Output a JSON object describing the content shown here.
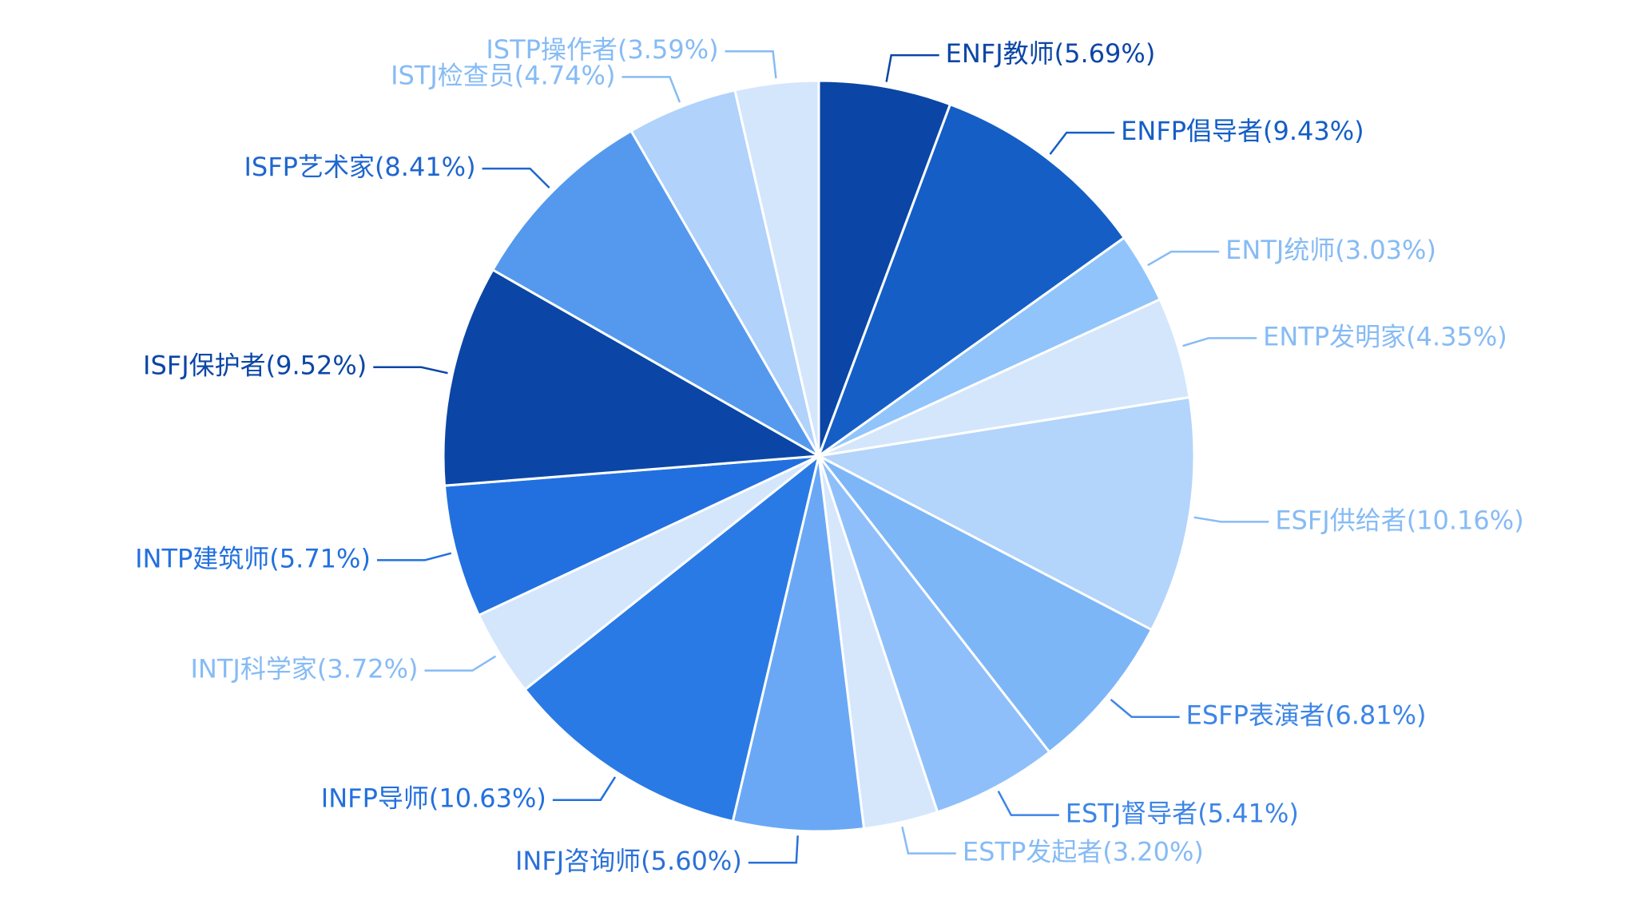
{
  "chart_data": {
    "type": "pie",
    "values": [
      5.69,
      9.43,
      3.03,
      4.35,
      10.16,
      6.81,
      5.41,
      3.2,
      5.6,
      10.63,
      3.72,
      5.71,
      9.52,
      8.41,
      4.74,
      3.59
    ],
    "value_labels": [
      "ENFJ教师(5.69%)",
      "ENFP倡导者(9.43%)",
      "ENTJ统师(3.03%)",
      "ENTP发明家(4.35%)",
      "ESFJ供给者(10.16%)",
      "ESFP表演者(6.81%)",
      "ESTJ督导者(5.41%)",
      "ESTP发起者(3.20%)",
      "INFJ咨询师(5.60%)",
      "INFP导师(10.63%)",
      "INTJ科学家(3.72%)",
      "INTP建筑师(5.71%)",
      "ISFJ保护者(9.52%)",
      "ISFP艺术家(8.41%)",
      "ISTJ检查员(4.74%)",
      "ISTP操作者(3.59%)"
    ],
    "colors": [
      "#0b46a6",
      "#145ec6",
      "#90c4fb",
      "#d4e6fc",
      "#b3d4fb",
      "#7db6f7",
      "#8ebffa",
      "#d6e7fc",
      "#6aa8f5",
      "#2a7ae5",
      "#d4e6fc",
      "#2270df",
      "#0b46a6",
      "#5599ee",
      "#b0d2fb",
      "#d4e6fc"
    ],
    "label_colors": [
      "#0b46a6",
      "#145ec6",
      "#86bbf5",
      "#86bbf5",
      "#86bbf5",
      "#3d85e6",
      "#3d85e6",
      "#86bbf5",
      "#2a70d8",
      "#2270df",
      "#86bbf5",
      "#2270df",
      "#0b46a6",
      "#1f66cf",
      "#86bbf5",
      "#86bbf5"
    ]
  }
}
